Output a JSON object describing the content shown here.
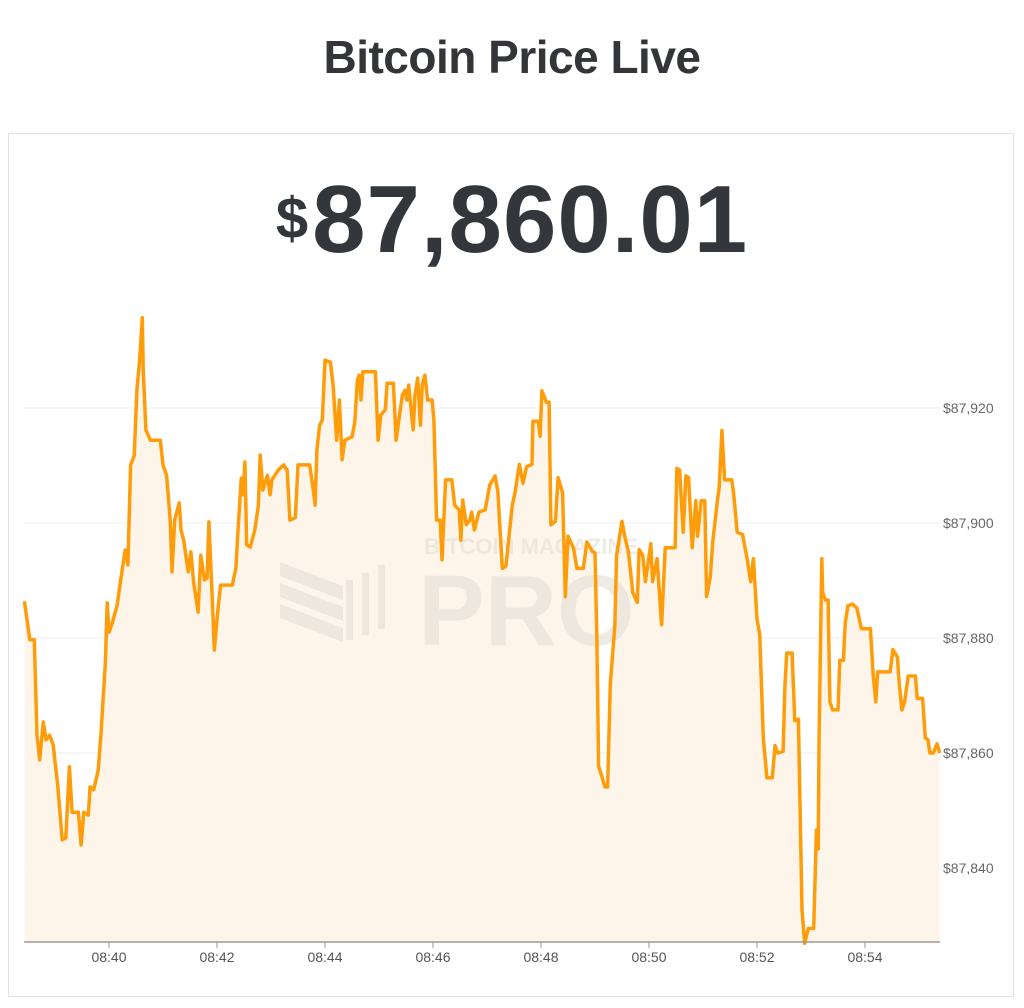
{
  "header": {
    "title": "Bitcoin Price Live"
  },
  "price": {
    "currency_symbol": "$",
    "value": "87,860.01"
  },
  "watermark": {
    "line1": "BITCOIN MAGAZINE",
    "line2": "PRO"
  },
  "colors": {
    "line": "#ff9c0a",
    "fill": "#fdf5ea",
    "grid": "#eeeeee",
    "axis": "#999999"
  },
  "chart_data": {
    "type": "area",
    "title": "",
    "xlabel": "",
    "ylabel": "",
    "x_range": [
      "08:38:25",
      "08:55:23"
    ],
    "ylim": [
      87827,
      87940
    ],
    "grid": true,
    "y_axis_side": "right",
    "y_ticks": [
      87920,
      87900,
      87880,
      87860,
      87840
    ],
    "y_tick_labels": [
      "$87,920",
      "$87,900",
      "$87,880",
      "$87,860",
      "$87,840"
    ],
    "x_ticks": [
      "08:40",
      "08:42",
      "08:44",
      "08:46",
      "08:48",
      "08:50",
      "08:52",
      "08:54"
    ],
    "series": [
      {
        "points": [
          [
            "08:38:26",
            87886.4
          ],
          [
            "08:38:32",
            87879.7
          ],
          [
            "08:38:37",
            87879.7
          ],
          [
            "08:38:40",
            87863.1
          ],
          [
            "08:38:43",
            87858.8
          ],
          [
            "08:38:47",
            87865.4
          ],
          [
            "08:38:50",
            87862.3
          ],
          [
            "08:38:54",
            87863.1
          ],
          [
            "08:38:58",
            87861.4
          ],
          [
            "08:39:03",
            87854.4
          ],
          [
            "08:39:08",
            87844.9
          ],
          [
            "08:39:12",
            87845.2
          ],
          [
            "08:39:16",
            87857.6
          ],
          [
            "08:39:19",
            87849.7
          ],
          [
            "08:39:26",
            87849.7
          ],
          [
            "08:39:29",
            87844.0
          ],
          [
            "08:39:32",
            87849.7
          ],
          [
            "08:39:37",
            87849.2
          ],
          [
            "08:39:39",
            87854.1
          ],
          [
            "08:39:43",
            87853.6
          ],
          [
            "08:39:48",
            87857.0
          ],
          [
            "08:39:51",
            87863.1
          ],
          [
            "08:39:56",
            87875.8
          ],
          [
            "08:39:58",
            87886.1
          ],
          [
            "08:40:00",
            87881.0
          ],
          [
            "08:40:04",
            87882.8
          ],
          [
            "08:40:09",
            87885.7
          ],
          [
            "08:40:13",
            87890.1
          ],
          [
            "08:40:18",
            87895.3
          ],
          [
            "08:40:21",
            87892.7
          ],
          [
            "08:40:24",
            87910.1
          ],
          [
            "08:40:28",
            87911.7
          ],
          [
            "08:40:31",
            87923.1
          ],
          [
            "08:40:34",
            87928.3
          ],
          [
            "08:40:37",
            87935.7
          ],
          [
            "08:40:38",
            87926.6
          ],
          [
            "08:40:41",
            87916.2
          ],
          [
            "08:40:46",
            87914.4
          ],
          [
            "08:40:57",
            87914.4
          ],
          [
            "08:41:00",
            87910.1
          ],
          [
            "08:41:04",
            87908.3
          ],
          [
            "08:41:08",
            87900.5
          ],
          [
            "08:41:10",
            87891.5
          ],
          [
            "08:41:13",
            87900.5
          ],
          [
            "08:41:18",
            87903.5
          ],
          [
            "08:41:20",
            87898.8
          ],
          [
            "08:41:23",
            87897.0
          ],
          [
            "08:41:28",
            87891.5
          ],
          [
            "08:41:31",
            87895.0
          ],
          [
            "08:41:34",
            87889.7
          ],
          [
            "08:41:39",
            87884.5
          ],
          [
            "08:41:42",
            87894.4
          ],
          [
            "08:41:46",
            87890.1
          ],
          [
            "08:41:49",
            87890.4
          ],
          [
            "08:41:51",
            87900.2
          ],
          [
            "08:41:56",
            87882.3
          ],
          [
            "08:41:57",
            87877.9
          ],
          [
            "08:42:01",
            87884.9
          ],
          [
            "08:42:04",
            87889.2
          ],
          [
            "08:42:17",
            87889.2
          ],
          [
            "08:42:21",
            87892.2
          ],
          [
            "08:42:23",
            87897.9
          ],
          [
            "08:42:27",
            87907.8
          ],
          [
            "08:42:29",
            87904.9
          ],
          [
            "08:42:31",
            87910.6
          ],
          [
            "08:42:33",
            87896.2
          ],
          [
            "08:42:37",
            87895.8
          ],
          [
            "08:42:42",
            87898.8
          ],
          [
            "08:42:46",
            87903.1
          ],
          [
            "08:42:48",
            87911.8
          ],
          [
            "08:42:51",
            87905.7
          ],
          [
            "08:42:56",
            87908.3
          ],
          [
            "08:42:59",
            87904.9
          ],
          [
            "08:43:01",
            87907.5
          ],
          [
            "08:43:08",
            87909.2
          ],
          [
            "08:43:14",
            87910.1
          ],
          [
            "08:43:18",
            87909.2
          ],
          [
            "08:43:21",
            87900.5
          ],
          [
            "08:43:27",
            87900.9
          ],
          [
            "08:43:30",
            87910.1
          ],
          [
            "08:43:43",
            87910.1
          ],
          [
            "08:43:47",
            87905.7
          ],
          [
            "08:43:49",
            87903.1
          ],
          [
            "08:43:51",
            87912.7
          ],
          [
            "08:43:54",
            87917.0
          ],
          [
            "08:43:57",
            87917.9
          ],
          [
            "08:44:00",
            87928.3
          ],
          [
            "08:44:06",
            87928.0
          ],
          [
            "08:44:09",
            87924.0
          ],
          [
            "08:44:13",
            87914.4
          ],
          [
            "08:44:16",
            87921.4
          ],
          [
            "08:44:19",
            87911.0
          ],
          [
            "08:44:22",
            87914.4
          ],
          [
            "08:44:30",
            87915.0
          ],
          [
            "08:44:33",
            87917.4
          ],
          [
            "08:44:36",
            87924.9
          ],
          [
            "08:44:38",
            87925.7
          ],
          [
            "08:44:40",
            87921.4
          ],
          [
            "08:44:42",
            87926.3
          ],
          [
            "08:44:56",
            87926.3
          ],
          [
            "08:44:59",
            87914.4
          ],
          [
            "08:45:02",
            87918.8
          ],
          [
            "08:45:07",
            87919.7
          ],
          [
            "08:45:09",
            87924.3
          ],
          [
            "08:45:16",
            87924.3
          ],
          [
            "08:45:19",
            87914.4
          ],
          [
            "08:45:22",
            87917.9
          ],
          [
            "08:45:26",
            87922.3
          ],
          [
            "08:45:29",
            87923.1
          ],
          [
            "08:45:31",
            87921.4
          ],
          [
            "08:45:33",
            87924.0
          ],
          [
            "08:45:38",
            87916.2
          ],
          [
            "08:45:40",
            87922.3
          ],
          [
            "08:45:43",
            87925.2
          ],
          [
            "08:45:46",
            87917.0
          ],
          [
            "08:45:48",
            87924.0
          ],
          [
            "08:45:51",
            87925.7
          ],
          [
            "08:45:54",
            87921.4
          ],
          [
            "08:45:59",
            87921.4
          ],
          [
            "08:46:01",
            87917.9
          ],
          [
            "08:46:04",
            87900.5
          ],
          [
            "08:46:08",
            87900.5
          ],
          [
            "08:46:10",
            87893.6
          ],
          [
            "08:46:14",
            87907.5
          ],
          [
            "08:46:21",
            87907.5
          ],
          [
            "08:46:24",
            87903.1
          ],
          [
            "08:46:29",
            87902.3
          ],
          [
            "08:46:31",
            87897.0
          ],
          [
            "08:46:33",
            87904.0
          ],
          [
            "08:46:37",
            87899.7
          ],
          [
            "08:46:41",
            87900.5
          ],
          [
            "08:46:43",
            87901.9
          ],
          [
            "08:46:46",
            87898.8
          ],
          [
            "08:46:51",
            87901.9
          ],
          [
            "08:46:58",
            87902.3
          ],
          [
            "08:47:03",
            87906.6
          ],
          [
            "08:47:09",
            87908.2
          ],
          [
            "08:47:12",
            87905.6
          ],
          [
            "08:47:17",
            87892.1
          ],
          [
            "08:47:21",
            87892.5
          ],
          [
            "08:47:28",
            87903.0
          ],
          [
            "08:47:31",
            87905.2
          ],
          [
            "08:47:36",
            87910.2
          ],
          [
            "08:47:40",
            87906.9
          ],
          [
            "08:47:44",
            87909.8
          ],
          [
            "08:47:50",
            87910.2
          ],
          [
            "08:47:51",
            87917.7
          ],
          [
            "08:47:57",
            87917.7
          ],
          [
            "08:47:59",
            87915.1
          ],
          [
            "08:48:01",
            87923.0
          ],
          [
            "08:48:06",
            87921.0
          ],
          [
            "08:48:09",
            87921.0
          ],
          [
            "08:48:11",
            87899.7
          ],
          [
            "08:48:16",
            87900.3
          ],
          [
            "08:48:19",
            87907.9
          ],
          [
            "08:48:24",
            87905.2
          ],
          [
            "08:48:27",
            87887.2
          ],
          [
            "08:48:30",
            87897.7
          ],
          [
            "08:48:36",
            87895.7
          ],
          [
            "08:48:40",
            87892.1
          ],
          [
            "08:48:47",
            87892.1
          ],
          [
            "08:48:51",
            87896.7
          ],
          [
            "08:48:57",
            87895.1
          ],
          [
            "08:49:00",
            87894.8
          ],
          [
            "08:49:02",
            87880.7
          ],
          [
            "08:49:04",
            87857.7
          ],
          [
            "08:49:08",
            87855.7
          ],
          [
            "08:49:11",
            87854.1
          ],
          [
            "08:49:14",
            87854.1
          ],
          [
            "08:49:17",
            87872.1
          ],
          [
            "08:49:22",
            87882.0
          ],
          [
            "08:49:24",
            87894.4
          ],
          [
            "08:49:30",
            87900.3
          ],
          [
            "08:49:33",
            87897.7
          ],
          [
            "08:49:37",
            87895.1
          ],
          [
            "08:49:42",
            87887.9
          ],
          [
            "08:49:47",
            87886.2
          ],
          [
            "08:49:49",
            87895.4
          ],
          [
            "08:49:53",
            87894.4
          ],
          [
            "08:49:56",
            87889.8
          ],
          [
            "08:50:02",
            87896.4
          ],
          [
            "08:50:04",
            87889.8
          ],
          [
            "08:50:09",
            87893.8
          ],
          [
            "08:50:14",
            87882.3
          ],
          [
            "08:50:18",
            87895.7
          ],
          [
            "08:50:29",
            87895.7
          ],
          [
            "08:50:31",
            87909.5
          ],
          [
            "08:50:34",
            87909.2
          ],
          [
            "08:50:38",
            87898.4
          ],
          [
            "08:50:41",
            87908.2
          ],
          [
            "08:50:44",
            87907.9
          ],
          [
            "08:50:48",
            87895.7
          ],
          [
            "08:50:52",
            87903.9
          ],
          [
            "08:50:54",
            87897.7
          ],
          [
            "08:50:58",
            87903.9
          ],
          [
            "08:51:02",
            87903.9
          ],
          [
            "08:51:04",
            87887.2
          ],
          [
            "08:51:08",
            87890.5
          ],
          [
            "08:51:11",
            87897.0
          ],
          [
            "08:51:16",
            87903.9
          ],
          [
            "08:51:18",
            87906.2
          ],
          [
            "08:51:21",
            87916.1
          ],
          [
            "08:51:24",
            87907.5
          ],
          [
            "08:51:32",
            87907.5
          ],
          [
            "08:51:34",
            87905.2
          ],
          [
            "08:51:38",
            87898.4
          ],
          [
            "08:51:44",
            87898.0
          ],
          [
            "08:51:49",
            87893.8
          ],
          [
            "08:51:53",
            87889.8
          ],
          [
            "08:51:56",
            87893.8
          ],
          [
            "08:52:00",
            87883.3
          ],
          [
            "08:52:03",
            87880.7
          ],
          [
            "08:52:07",
            87862.6
          ],
          [
            "08:52:11",
            87855.7
          ],
          [
            "08:52:17",
            87855.7
          ],
          [
            "08:52:20",
            87861.3
          ],
          [
            "08:52:23",
            87860.0
          ],
          [
            "08:52:29",
            87860.3
          ],
          [
            "08:52:31",
            87871.5
          ],
          [
            "08:52:33",
            87877.4
          ],
          [
            "08:52:39",
            87877.4
          ],
          [
            "08:52:42",
            87865.6
          ],
          [
            "08:52:46",
            87865.9
          ],
          [
            "08:52:50",
            87832.8
          ],
          [
            "08:52:53",
            87826.9
          ],
          [
            "08:52:57",
            87829.5
          ],
          [
            "08:53:03",
            87829.5
          ],
          [
            "08:53:06",
            87846.6
          ],
          [
            "08:53:08",
            87843.3
          ],
          [
            "08:53:09",
            87863.0
          ],
          [
            "08:53:12",
            87893.8
          ],
          [
            "08:53:13",
            87887.9
          ],
          [
            "08:53:16",
            87886.6
          ],
          [
            "08:53:19",
            87886.6
          ],
          [
            "08:53:21",
            87868.9
          ],
          [
            "08:53:24",
            87867.5
          ],
          [
            "08:53:30",
            87867.5
          ],
          [
            "08:53:32",
            87876.1
          ],
          [
            "08:53:36",
            87876.1
          ],
          [
            "08:53:38",
            87882.6
          ],
          [
            "08:53:41",
            87885.6
          ],
          [
            "08:53:46",
            87885.9
          ],
          [
            "08:53:51",
            87885.2
          ],
          [
            "08:53:56",
            87881.6
          ],
          [
            "08:54:06",
            87881.6
          ],
          [
            "08:54:09",
            87873.8
          ],
          [
            "08:54:12",
            87868.9
          ],
          [
            "08:54:14",
            87874.1
          ],
          [
            "08:54:28",
            87874.1
          ],
          [
            "08:54:31",
            87878.0
          ],
          [
            "08:54:36",
            87876.7
          ],
          [
            "08:54:38",
            87872.1
          ],
          [
            "08:54:41",
            87867.5
          ],
          [
            "08:54:44",
            87868.9
          ],
          [
            "08:54:48",
            87873.4
          ],
          [
            "08:54:56",
            87873.4
          ],
          [
            "08:54:58",
            87869.5
          ],
          [
            "08:55:04",
            87869.5
          ],
          [
            "08:55:07",
            87862.6
          ],
          [
            "08:55:10",
            87862.3
          ],
          [
            "08:55:12",
            87860.0
          ],
          [
            "08:55:16",
            87860.0
          ],
          [
            "08:55:20",
            87861.6
          ],
          [
            "08:55:23",
            87860.0
          ]
        ]
      }
    ]
  }
}
